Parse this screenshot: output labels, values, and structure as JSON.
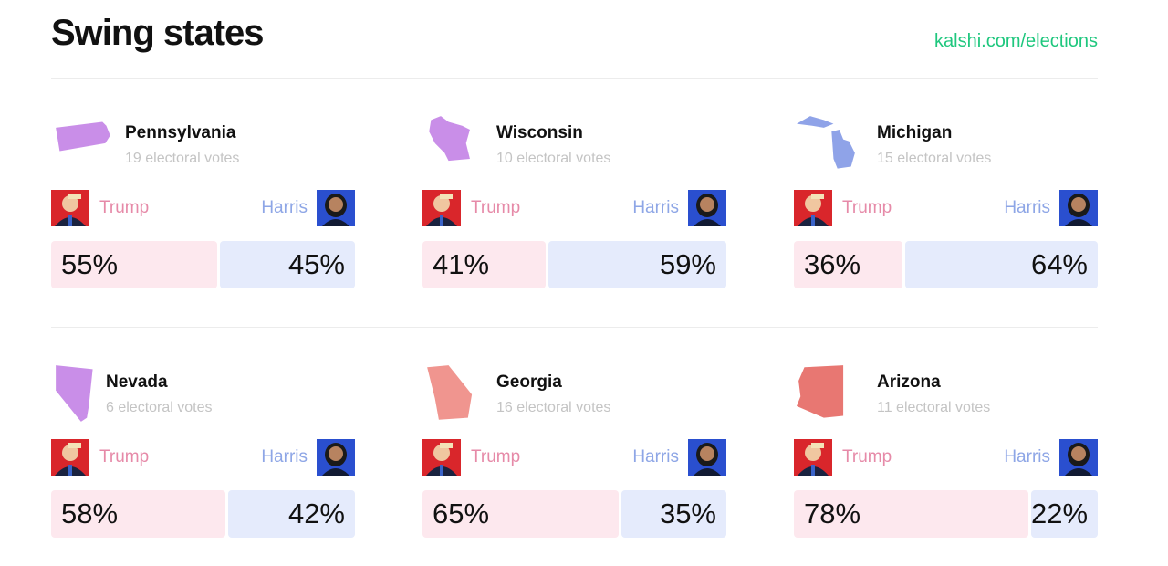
{
  "title": "Swing states",
  "link": "kalshi.com/elections",
  "candidates": {
    "trump": "Trump",
    "harris": "Harris"
  },
  "colors": {
    "trump_bar": "#fde8ee",
    "harris_bar": "#e5ebfc",
    "trump_text": "#e68aa8",
    "harris_text": "#8ea6e6",
    "link": "#1fc77e"
  },
  "states": [
    {
      "name": "Pennsylvania",
      "votes": "19 electoral votes",
      "trump": 55,
      "harris": 45,
      "trump_label": "55%",
      "harris_label": "45%",
      "color": "#c98ee8"
    },
    {
      "name": "Wisconsin",
      "votes": "10 electoral votes",
      "trump": 41,
      "harris": 59,
      "trump_label": "41%",
      "harris_label": "59%",
      "color": "#c98ee8"
    },
    {
      "name": "Michigan",
      "votes": "15 electoral votes",
      "trump": 36,
      "harris": 64,
      "trump_label": "36%",
      "harris_label": "64%",
      "color": "#8fa3e8"
    },
    {
      "name": "Nevada",
      "votes": "6 electoral votes",
      "trump": 58,
      "harris": 42,
      "trump_label": "58%",
      "harris_label": "42%",
      "color": "#c98ee8"
    },
    {
      "name": "Georgia",
      "votes": "16 electoral votes",
      "trump": 65,
      "harris": 35,
      "trump_label": "65%",
      "harris_label": "35%",
      "color": "#f0958f"
    },
    {
      "name": "Arizona",
      "votes": "11 electoral votes",
      "trump": 78,
      "harris": 22,
      "trump_label": "78%",
      "harris_label": "22%",
      "color": "#e87772"
    }
  ]
}
